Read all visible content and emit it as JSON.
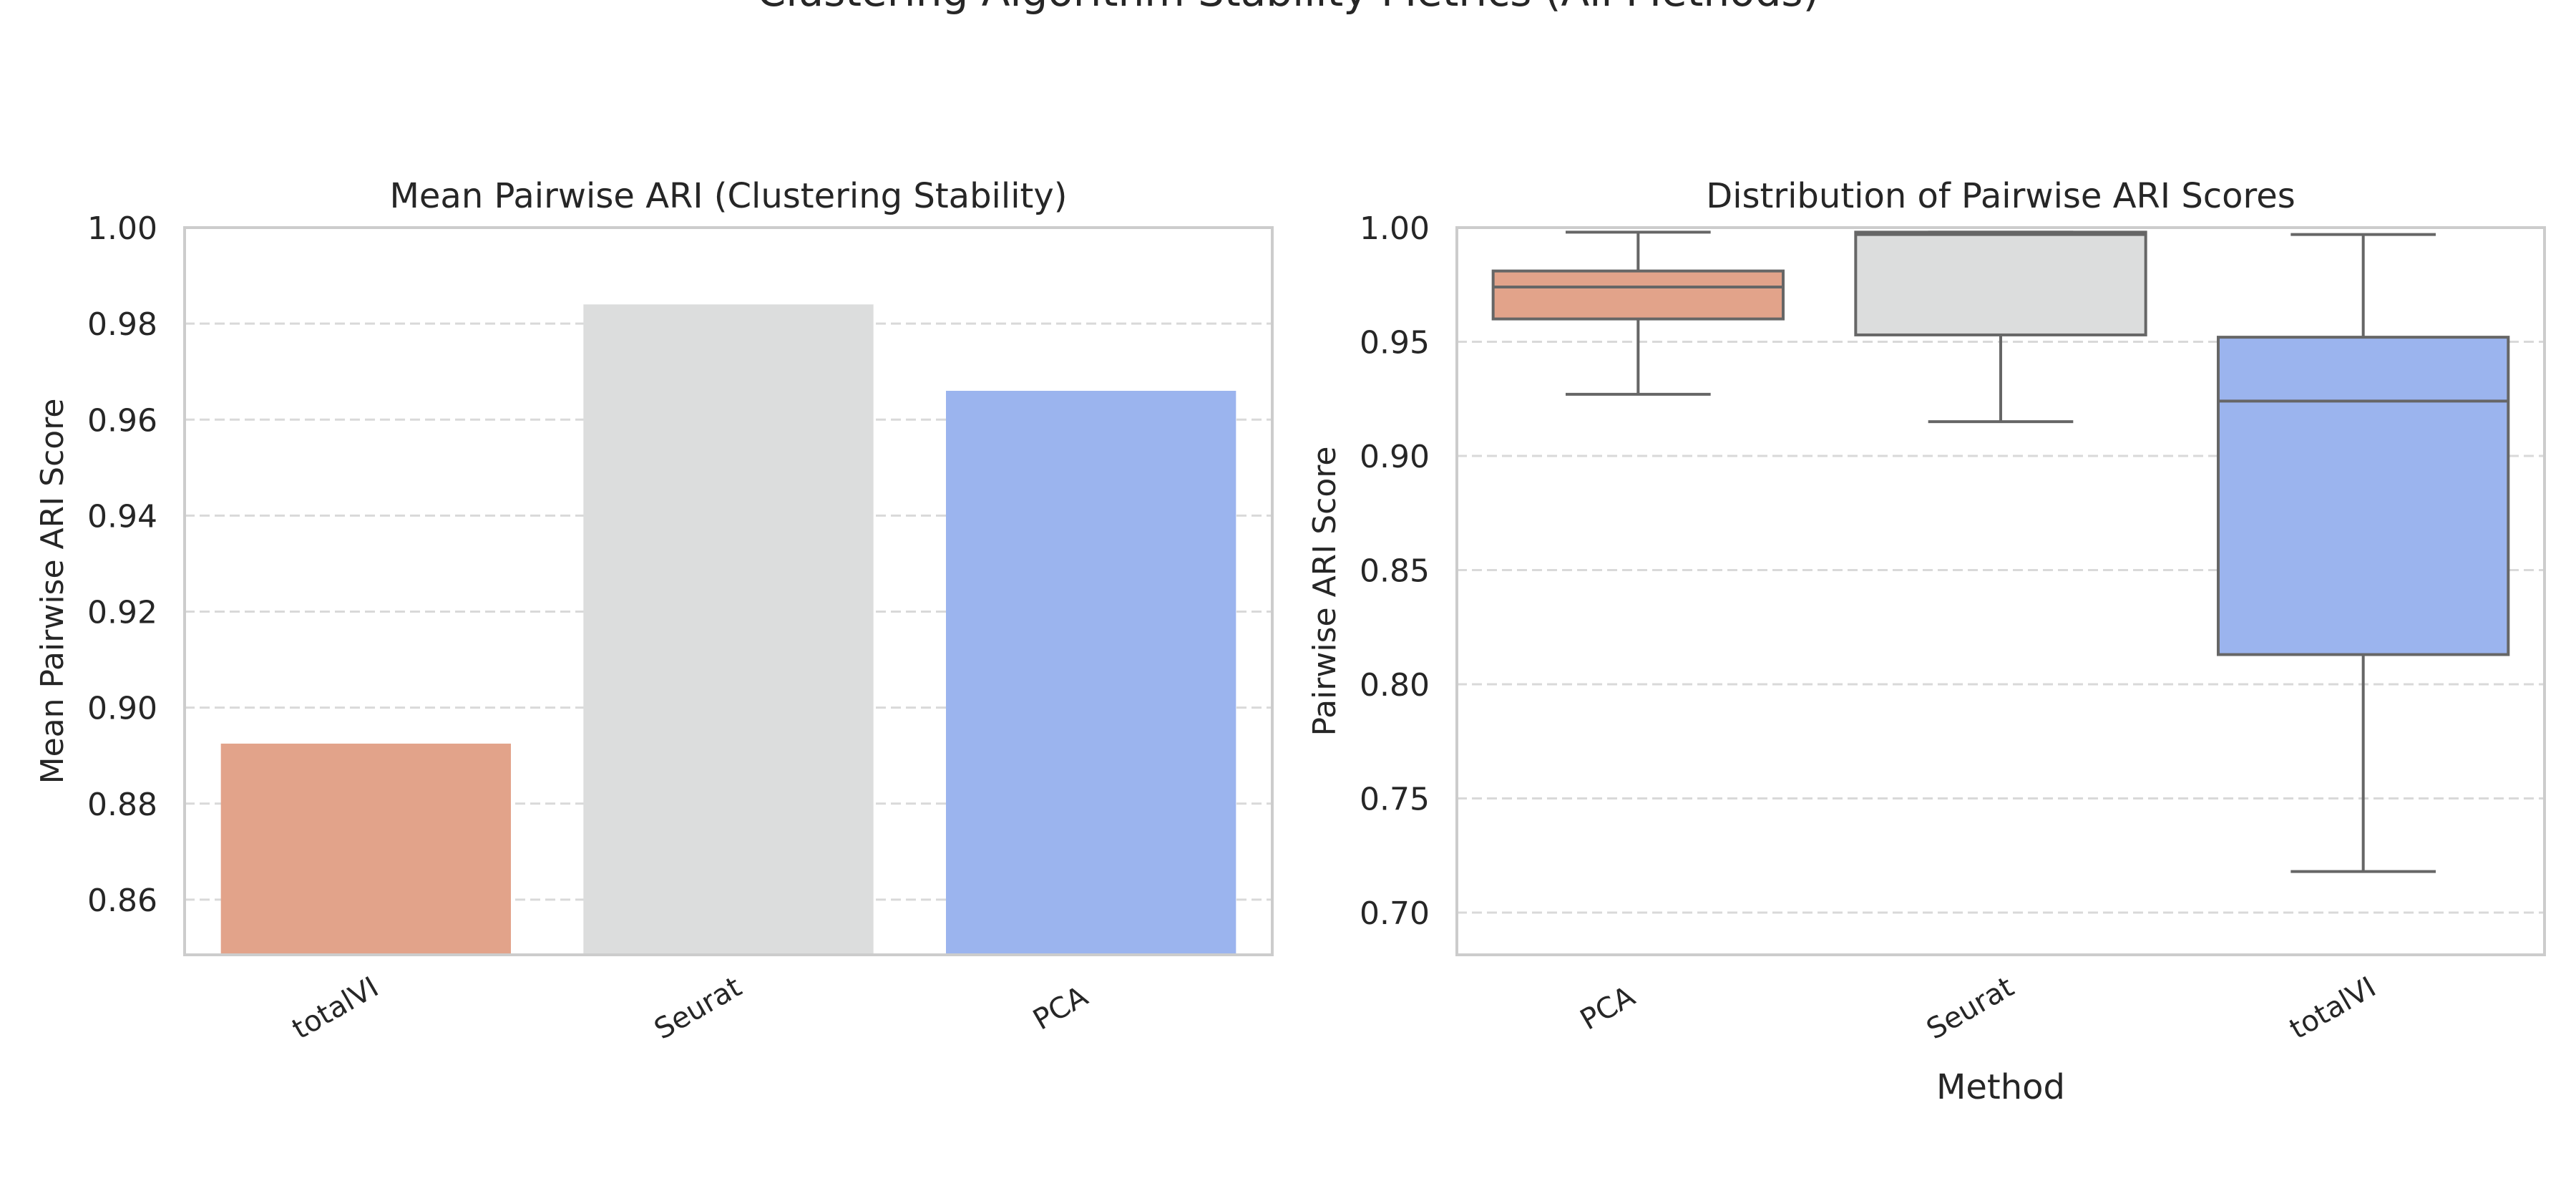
{
  "figure": {
    "suptitle": "Clustering Algorithm Stability Metrics (All Methods)"
  },
  "chart_data": [
    {
      "type": "bar",
      "title": "Mean Pairwise ARI (Clustering Stability)",
      "xlabel": "",
      "ylabel": "Mean Pairwise ARI Score",
      "categories": [
        "totalVI",
        "Seurat",
        "PCA"
      ],
      "values": [
        0.8925,
        0.984,
        0.966
      ],
      "colors": [
        "#e2a38a",
        "#dcdddd",
        "#9bb4ee"
      ],
      "ylim": [
        0.8485,
        1.0
      ],
      "yticks": [
        "0.86",
        "0.88",
        "0.90",
        "0.92",
        "0.94",
        "0.96",
        "0.98",
        "1.00"
      ],
      "grid": "y dashed",
      "legend": "none"
    },
    {
      "type": "box",
      "title": "Distribution of Pairwise ARI Scores",
      "xlabel": "Method",
      "ylabel": "Pairwise ARI Score",
      "categories": [
        "PCA",
        "Seurat",
        "totalVI"
      ],
      "boxes": [
        {
          "whisker_low": 0.927,
          "q1": 0.96,
          "median": 0.974,
          "q3": 0.981,
          "whisker_high": 0.998
        },
        {
          "whisker_low": 0.915,
          "q1": 0.953,
          "median": 0.997,
          "q3": 0.998,
          "whisker_high": 0.998
        },
        {
          "whisker_low": 0.718,
          "q1": 0.813,
          "median": 0.924,
          "q3": 0.952,
          "whisker_high": 0.997
        }
      ],
      "colors": [
        "#e2a38a",
        "#dcdddd",
        "#9bb4ee"
      ],
      "ylim": [
        0.6815,
        1.0
      ],
      "yticks": [
        "0.70",
        "0.75",
        "0.80",
        "0.85",
        "0.90",
        "0.95",
        "1.00"
      ],
      "grid": "y dashed",
      "legend": "none"
    }
  ]
}
